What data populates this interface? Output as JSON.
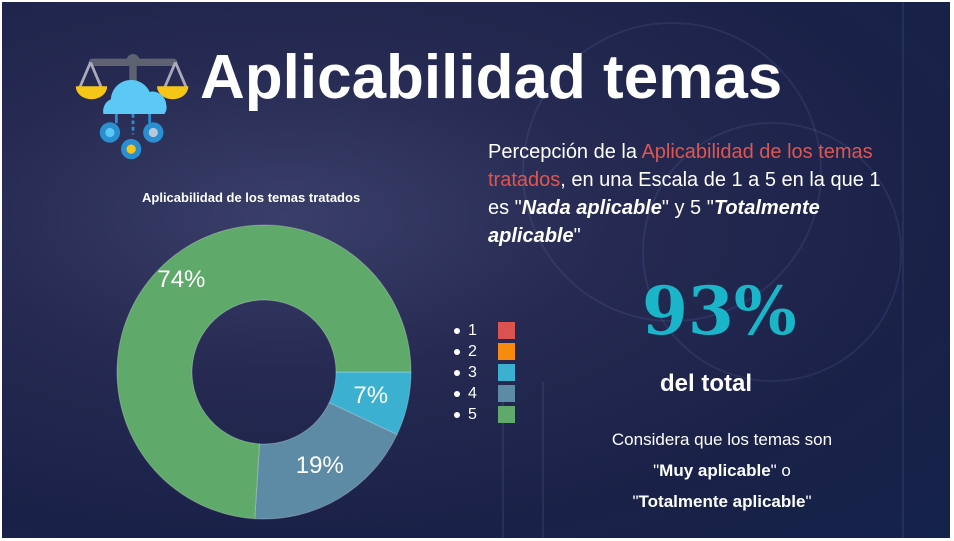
{
  "title": "Aplicabilidad temas",
  "description": {
    "p1": "Percepción de la ",
    "highlight": "Aplicabilidad de los temas tratados",
    "p2": ", en una Escala de 1 a 5 en la que 1 es \"",
    "nada": "Nada aplicable",
    "p3": "\" y 5 \"",
    "total": "Totalmente aplicable",
    "p4": "\""
  },
  "stat": {
    "value": "93%",
    "label": "del total",
    "note_1": "Considera que los temas son",
    "note_q1": "\"",
    "note_b1": "Muy aplicable",
    "note_q2": "\" o",
    "note_q3": "\"",
    "note_b2": "Totalmente aplicable",
    "note_q4": "\""
  },
  "chart_data": {
    "type": "pie",
    "donut": true,
    "title": "Aplicabilidad de los temas tratados",
    "categories": [
      "1",
      "2",
      "3",
      "4",
      "5"
    ],
    "values": [
      0,
      0,
      7,
      19,
      74
    ],
    "data_labels": [
      "",
      "",
      "7%",
      "19%",
      "74%"
    ],
    "colors": [
      "#d9534f",
      "#f68b0e",
      "#3bb0d0",
      "#5d8aa5",
      "#5faa6a"
    ],
    "legend": "right"
  }
}
